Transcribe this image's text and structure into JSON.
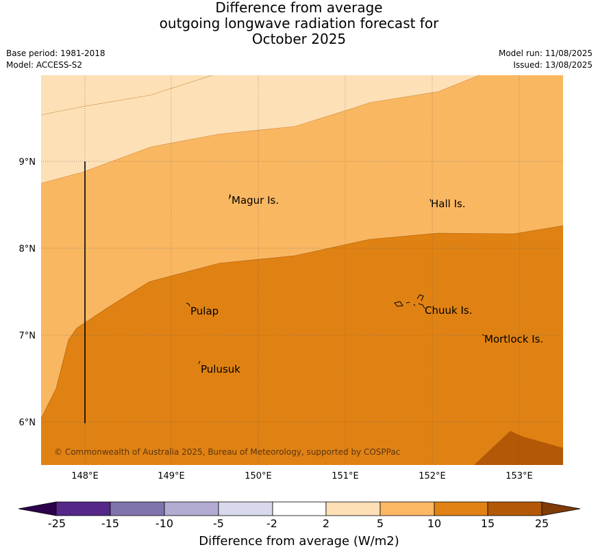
{
  "title": {
    "line1": "Difference from average",
    "line2": "outgoing longwave radiation forecast for",
    "line3": "October 2025"
  },
  "meta": {
    "base_period": "Base period: 1981-2018",
    "model": "Model: ACCESS-S2",
    "model_run": "Model run: 11/08/2025",
    "issued": "Issued: 13/08/2025"
  },
  "map": {
    "lon_ticks": [
      "148°E",
      "149°E",
      "150°E",
      "151°E",
      "152°E",
      "153°E"
    ],
    "lat_ticks": [
      "9°N",
      "8°N",
      "7°N",
      "6°N"
    ],
    "places": [
      "Magur Is.",
      "Hall Is.",
      "Pulap",
      "Chuuk Is.",
      "Mortlock Is.",
      "Pulusuk"
    ],
    "copyright": "© Commonwealth of Australia 2025, Bureau of Meteorology, supported by COSPPac",
    "fill_colors": {
      "band_2_5": "#fde0b6",
      "band_5_10": "#fab762",
      "band_10_15": "#e08213",
      "band_15_25": "#b35806"
    }
  },
  "colorbar": {
    "title": "Difference from average (W/m2)",
    "tick_labels": [
      "-25",
      "-15",
      "-10",
      "-5",
      "-2",
      "2",
      "5",
      "10",
      "15",
      "25"
    ],
    "colors": [
      "#2d004b",
      "#542788",
      "#8073ac",
      "#b2abd2",
      "#d8daeb",
      "#ffffff",
      "#fee0b6",
      "#fdb863",
      "#e08214",
      "#b35806",
      "#7f3b08"
    ]
  }
}
